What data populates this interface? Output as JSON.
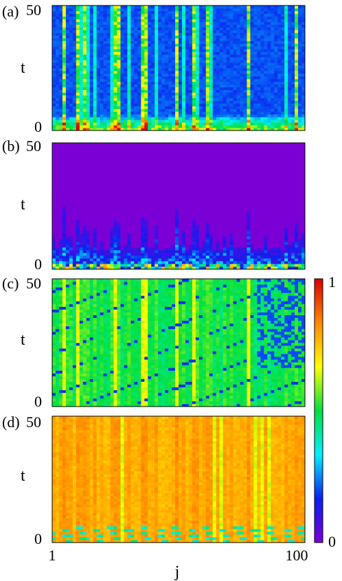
{
  "chart_data": {
    "type": "heatmap",
    "x": {
      "label": "j",
      "range": [
        1,
        100
      ],
      "tick_labels": [
        "1",
        "100"
      ]
    },
    "colorbar": {
      "range": [
        0,
        1
      ],
      "tick_labels": [
        "0",
        "1"
      ],
      "colormap": [
        "#7a00d6",
        "#0a20f0",
        "#00f0ff",
        "#00e040",
        "#ffff00",
        "#ff8800",
        "#d80000"
      ]
    },
    "panels": [
      {
        "label": "(a)",
        "ylabel": "t",
        "ylim": [
          0,
          50
        ],
        "tick_labels": [
          "0",
          "50"
        ],
        "description": "mostly low values (blue) with bright vertical streaks; high values near t=0",
        "base_value": 0.18,
        "mean_level": 0.22
      },
      {
        "label": "(b)",
        "ylabel": "t",
        "ylim": [
          0,
          50
        ],
        "tick_labels": [
          "0",
          "50"
        ],
        "description": "near-zero (purple) except a low-t band with rising spikes",
        "base_value": 0.0,
        "mean_level": 0.05
      },
      {
        "label": "(c)",
        "ylabel": "t",
        "ylim": [
          0,
          50
        ],
        "tick_labels": [
          "0",
          "50"
        ],
        "description": "green/cyan with yellow stripes and blue diagonal bands",
        "base_value": 0.45,
        "mean_level": 0.45
      },
      {
        "label": "(d)",
        "ylabel": "t",
        "ylim": [
          0,
          50
        ],
        "tick_labels": [
          "0",
          "50"
        ],
        "description": "mostly orange/yellow, blue-green diagonal streaks near t=0",
        "base_value": 0.75,
        "mean_level": 0.75
      }
    ]
  }
}
